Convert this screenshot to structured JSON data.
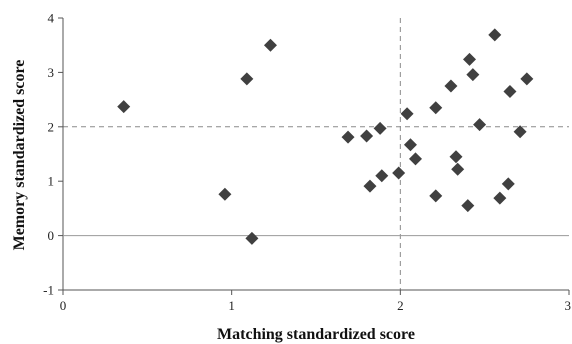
{
  "chart_data": {
    "type": "scatter",
    "xlabel": "Matching standardized score",
    "ylabel": "Memory standardized score",
    "xlim": [
      0,
      3
    ],
    "ylim": [
      -1,
      4
    ],
    "x_ticks": [
      "0",
      "1",
      "2",
      "3"
    ],
    "y_ticks": [
      "-1",
      "0",
      "1",
      "2",
      "3",
      "4"
    ],
    "reference_lines": {
      "x": 2,
      "y": 2,
      "style": "dashed"
    },
    "zero_line_y": 0,
    "grid": false,
    "marker": "diamond",
    "marker_color": "#404040",
    "series": [
      {
        "points": [
          [
            0.36,
            2.37
          ],
          [
            0.96,
            0.76
          ],
          [
            1.09,
            2.88
          ],
          [
            1.12,
            -0.05
          ],
          [
            1.23,
            3.5
          ],
          [
            1.69,
            1.81
          ],
          [
            1.8,
            1.83
          ],
          [
            1.82,
            0.91
          ],
          [
            1.88,
            1.97
          ],
          [
            1.89,
            1.1
          ],
          [
            1.99,
            1.15
          ],
          [
            2.04,
            2.24
          ],
          [
            2.06,
            1.67
          ],
          [
            2.09,
            1.41
          ],
          [
            2.21,
            2.35
          ],
          [
            2.21,
            0.73
          ],
          [
            2.3,
            2.75
          ],
          [
            2.33,
            1.45
          ],
          [
            2.34,
            1.22
          ],
          [
            2.4,
            0.55
          ],
          [
            2.41,
            3.24
          ],
          [
            2.43,
            2.96
          ],
          [
            2.47,
            2.04
          ],
          [
            2.56,
            3.69
          ],
          [
            2.59,
            0.69
          ],
          [
            2.64,
            0.95
          ],
          [
            2.65,
            2.65
          ],
          [
            2.71,
            1.91
          ],
          [
            2.75,
            2.88
          ]
        ]
      }
    ]
  }
}
